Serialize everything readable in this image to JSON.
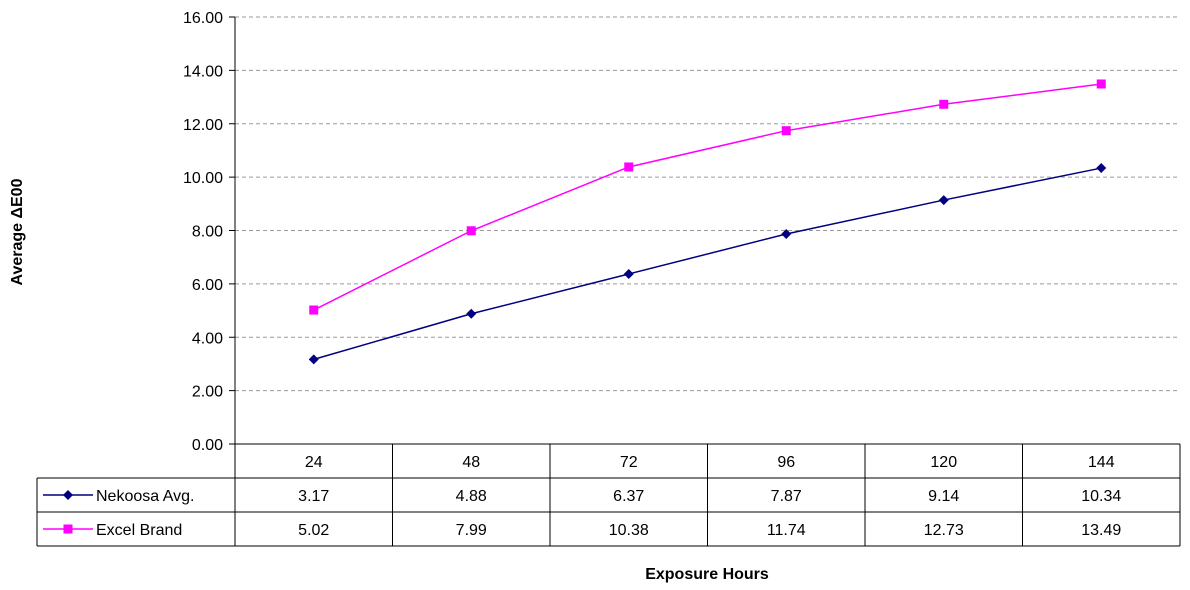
{
  "chart_data": {
    "type": "line",
    "title": "",
    "xlabel": "Exposure Hours",
    "ylabel": "Average ΔE00",
    "ylim": [
      0,
      16
    ],
    "y_ticks": [
      "0.00",
      "2.00",
      "4.00",
      "6.00",
      "8.00",
      "10.00",
      "12.00",
      "14.00",
      "16.00"
    ],
    "categories": [
      "24",
      "48",
      "72",
      "96",
      "120",
      "144"
    ],
    "grid": "horizontal-dashed",
    "legend": "data-table",
    "series": [
      {
        "name": "Nekoosa Avg.",
        "color": "#000080",
        "marker": "diamond",
        "values": [
          3.17,
          4.88,
          6.37,
          7.87,
          9.14,
          10.34
        ],
        "labels": [
          "3.17",
          "4.88",
          "6.37",
          "7.87",
          "9.14",
          "10.34"
        ]
      },
      {
        "name": "Excel Brand",
        "color": "#ff00ff",
        "marker": "square",
        "values": [
          5.02,
          7.99,
          10.38,
          11.74,
          12.73,
          13.49
        ],
        "labels": [
          "5.02",
          "7.99",
          "10.38",
          "11.74",
          "12.73",
          "13.49"
        ]
      }
    ]
  }
}
